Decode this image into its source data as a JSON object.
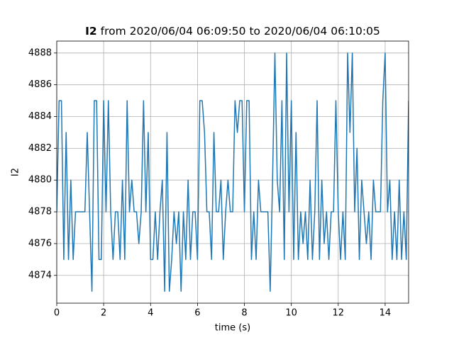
{
  "chart_data": {
    "type": "line",
    "title_name": "I2",
    "title": "from 2020/06/04 06:09:50 to 2020/06/04 06:10:05",
    "xlabel": "time (s)",
    "ylabel": "I2",
    "color": "#1f77b4",
    "grid": true,
    "xlim": [
      0,
      15
    ],
    "xticks": [
      0,
      2,
      4,
      6,
      8,
      10,
      12,
      14
    ],
    "ylim": [
      4872.25,
      4888.75
    ],
    "yticks": [
      4874,
      4876,
      4878,
      4880,
      4882,
      4884,
      4886,
      4888
    ],
    "x": [
      0,
      0.1,
      0.2,
      0.3,
      0.4,
      0.5,
      0.6,
      0.7,
      0.8,
      0.9,
      1,
      1.1,
      1.2,
      1.3,
      1.4,
      1.5,
      1.6,
      1.7,
      1.8,
      1.9,
      2,
      2.1,
      2.2,
      2.3,
      2.4,
      2.5,
      2.6,
      2.7,
      2.8,
      2.9,
      3,
      3.1,
      3.2,
      3.3,
      3.4,
      3.5,
      3.6,
      3.7,
      3.8,
      3.9,
      4,
      4.1,
      4.2,
      4.3,
      4.4,
      4.5,
      4.6,
      4.7,
      4.8,
      4.9,
      5,
      5.1,
      5.2,
      5.3,
      5.4,
      5.5,
      5.6,
      5.7,
      5.8,
      5.9,
      6,
      6.1,
      6.2,
      6.3,
      6.4,
      6.5,
      6.6,
      6.7,
      6.8,
      6.9,
      7,
      7.1,
      7.2,
      7.3,
      7.4,
      7.5,
      7.6,
      7.7,
      7.8,
      7.9,
      8,
      8.1,
      8.2,
      8.3,
      8.4,
      8.5,
      8.6,
      8.7,
      8.8,
      8.9,
      9,
      9.1,
      9.2,
      9.3,
      9.4,
      9.5,
      9.6,
      9.7,
      9.8,
      9.9,
      10,
      10.1,
      10.2,
      10.3,
      10.4,
      10.5,
      10.6,
      10.7,
      10.8,
      10.9,
      11,
      11.1,
      11.2,
      11.3,
      11.4,
      11.5,
      11.6,
      11.7,
      11.8,
      11.9,
      12,
      12.1,
      12.2,
      12.3,
      12.4,
      12.5,
      12.6,
      12.7,
      12.8,
      12.9,
      13,
      13.1,
      13.2,
      13.3,
      13.4,
      13.5,
      13.6,
      13.7,
      13.8,
      13.9,
      14,
      14.1,
      14.2,
      14.3,
      14.4,
      14.5,
      14.6,
      14.7,
      14.8,
      14.9,
      15
    ],
    "values": [
      4878,
      4885,
      4885,
      4875,
      4883,
      4875,
      4880,
      4875,
      4878,
      4878,
      4878,
      4878,
      4878,
      4883,
      4878,
      4873,
      4885,
      4885,
      4875,
      4875,
      4885,
      4878,
      4885,
      4878,
      4875,
      4878,
      4878,
      4875,
      4880,
      4875,
      4885,
      4878,
      4880,
      4878,
      4878,
      4876,
      4878,
      4885,
      4878,
      4883,
      4875,
      4875,
      4878,
      4875,
      4878,
      4880,
      4873,
      4883,
      4873,
      4875,
      4878,
      4876,
      4878,
      4873,
      4878,
      4875,
      4880,
      4875,
      4878,
      4878,
      4875,
      4885,
      4885,
      4883,
      4878,
      4878,
      4875,
      4883,
      4878,
      4878,
      4880,
      4875,
      4878,
      4880,
      4878,
      4878,
      4885,
      4883,
      4885,
      4885,
      4878,
      4885,
      4885,
      4875,
      4878,
      4875,
      4880,
      4878,
      4878,
      4878,
      4878,
      4873,
      4880,
      4888,
      4880,
      4878,
      4885,
      4875,
      4888,
      4878,
      4885,
      4875,
      4883,
      4875,
      4878,
      4876,
      4878,
      4875,
      4880,
      4875,
      4878,
      4885,
      4875,
      4880,
      4876,
      4878,
      4875,
      4878,
      4878,
      4885,
      4878,
      4875,
      4878,
      4875,
      4888,
      4883,
      4888,
      4878,
      4882,
      4875,
      4880,
      4878,
      4876,
      4878,
      4875,
      4880,
      4878,
      4878,
      4878,
      4885,
      4888,
      4878,
      4880,
      4875,
      4878,
      4875,
      4880,
      4875,
      4878,
      4875,
      4885
    ]
  }
}
